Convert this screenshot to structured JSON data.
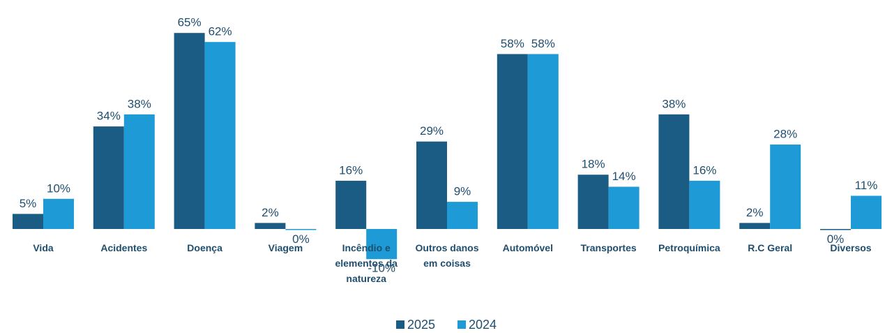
{
  "chart_data": {
    "type": "bar",
    "categories": [
      "Vida",
      "Acidentes",
      "Doença",
      "Viagem",
      "Incêndio e elementos da natureza",
      "Outros danos em coisas",
      "Automóvel",
      "Transportes",
      "Petroquímica",
      "R.C Geral",
      "Diversos"
    ],
    "series": [
      {
        "name": "2025",
        "color": "#1b5c84",
        "values": [
          5,
          34,
          65,
          2,
          16,
          29,
          58,
          18,
          38,
          2,
          0
        ],
        "value_labels": [
          "5%",
          "34%",
          "65%",
          "2%",
          "16%",
          "29%",
          "58%",
          "18%",
          "38%",
          "2%",
          "0%"
        ]
      },
      {
        "name": "2024",
        "color": "#1e9ad6",
        "values": [
          10,
          38,
          62,
          0,
          -10,
          9,
          58,
          14,
          16,
          28,
          11
        ],
        "value_labels": [
          "10%",
          "38%",
          "62%",
          "0%",
          "-10%",
          "9%",
          "58%",
          "14%",
          "16%",
          "28%",
          "11%"
        ]
      }
    ],
    "legend": "bottom"
  }
}
